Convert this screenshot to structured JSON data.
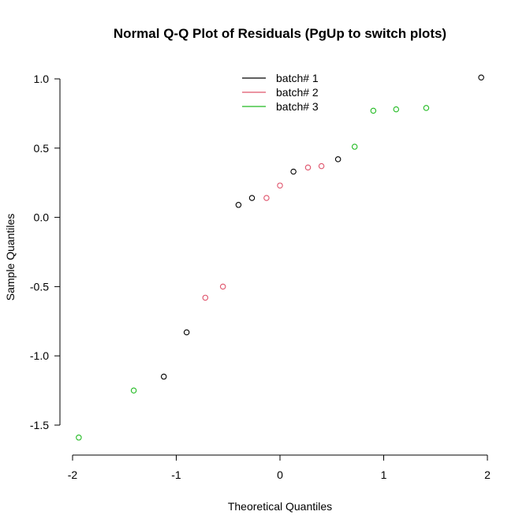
{
  "chart_data": {
    "type": "scatter",
    "title": "Normal Q-Q Plot of Residuals (PgUp to switch plots)",
    "xlabel": "Theoretical Quantiles",
    "ylabel": "Sample Quantiles",
    "xlim": [
      -2,
      2
    ],
    "ylim": [
      -1.6,
      1.0
    ],
    "xticks": [
      -2,
      -1,
      0,
      1,
      2
    ],
    "yticks": [
      -1.5,
      -1.0,
      -0.5,
      0.0,
      0.5,
      1.0
    ],
    "xtick_labels": [
      "-2",
      "-1",
      "0",
      "1",
      "2"
    ],
    "ytick_labels": [
      "-1.5",
      "-1.0",
      "-0.5",
      "0.0",
      "0.5",
      "1.0"
    ],
    "grid": false,
    "legend_position": "top-center",
    "series": [
      {
        "name": "batch# 1",
        "color": "#000000",
        "points": [
          {
            "x": -1.12,
            "y": -1.15
          },
          {
            "x": -0.9,
            "y": -0.83
          },
          {
            "x": -0.4,
            "y": 0.09
          },
          {
            "x": -0.27,
            "y": 0.14
          },
          {
            "x": 0.13,
            "y": 0.33
          },
          {
            "x": 0.56,
            "y": 0.42
          },
          {
            "x": 1.94,
            "y": 1.01
          }
        ]
      },
      {
        "name": "batch# 2",
        "color": "#DF536B",
        "points": [
          {
            "x": -0.72,
            "y": -0.58
          },
          {
            "x": -0.55,
            "y": -0.5
          },
          {
            "x": -0.13,
            "y": 0.14
          },
          {
            "x": 0.0,
            "y": 0.23
          },
          {
            "x": 0.27,
            "y": 0.36
          },
          {
            "x": 0.4,
            "y": 0.37
          }
        ]
      },
      {
        "name": "batch# 3",
        "color": "#22BB22",
        "points": [
          {
            "x": -1.94,
            "y": -1.59
          },
          {
            "x": -1.41,
            "y": -1.25
          },
          {
            "x": 0.72,
            "y": 0.51
          },
          {
            "x": 0.9,
            "y": 0.77
          },
          {
            "x": 1.12,
            "y": 0.78
          },
          {
            "x": 1.41,
            "y": 0.79
          }
        ]
      }
    ]
  }
}
